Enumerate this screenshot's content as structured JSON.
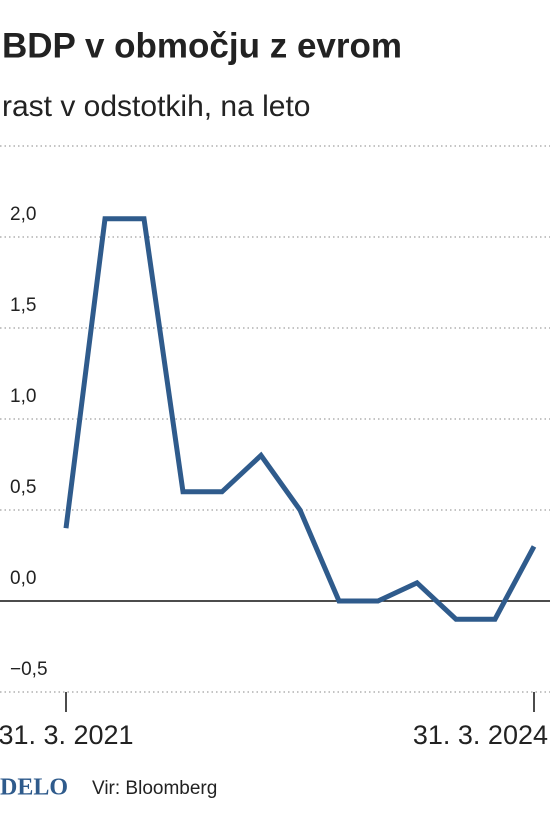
{
  "chart_data": {
    "type": "line",
    "title": "BDP v območju z evrom",
    "subtitle": "rast v odstotkih, na leto",
    "categories": [
      "31. 3. 2021",
      null,
      null,
      null,
      null,
      null,
      null,
      null,
      null,
      null,
      null,
      null,
      "31. 3. 2024"
    ],
    "series": [
      {
        "name": "BDP",
        "color": "#2f5b8c",
        "values": [
          0.4,
          2.1,
          2.1,
          0.6,
          0.6,
          0.8,
          0.5,
          0.0,
          0.0,
          0.1,
          -0.1,
          -0.1,
          0.3
        ]
      }
    ],
    "ylim": [
      -0.5,
      2.5
    ],
    "yticks": [
      {
        "value": -0.5,
        "label": "−0,5"
      },
      {
        "value": 0,
        "label": "0,0"
      },
      {
        "value": 0.5,
        "label": "0,5"
      },
      {
        "value": 1,
        "label": "1,0"
      },
      {
        "value": 1.5,
        "label": "1,5"
      },
      {
        "value": 2,
        "label": "2,0"
      }
    ],
    "grid": true,
    "logo": "DELO",
    "source": "Vir: Bloomberg"
  }
}
